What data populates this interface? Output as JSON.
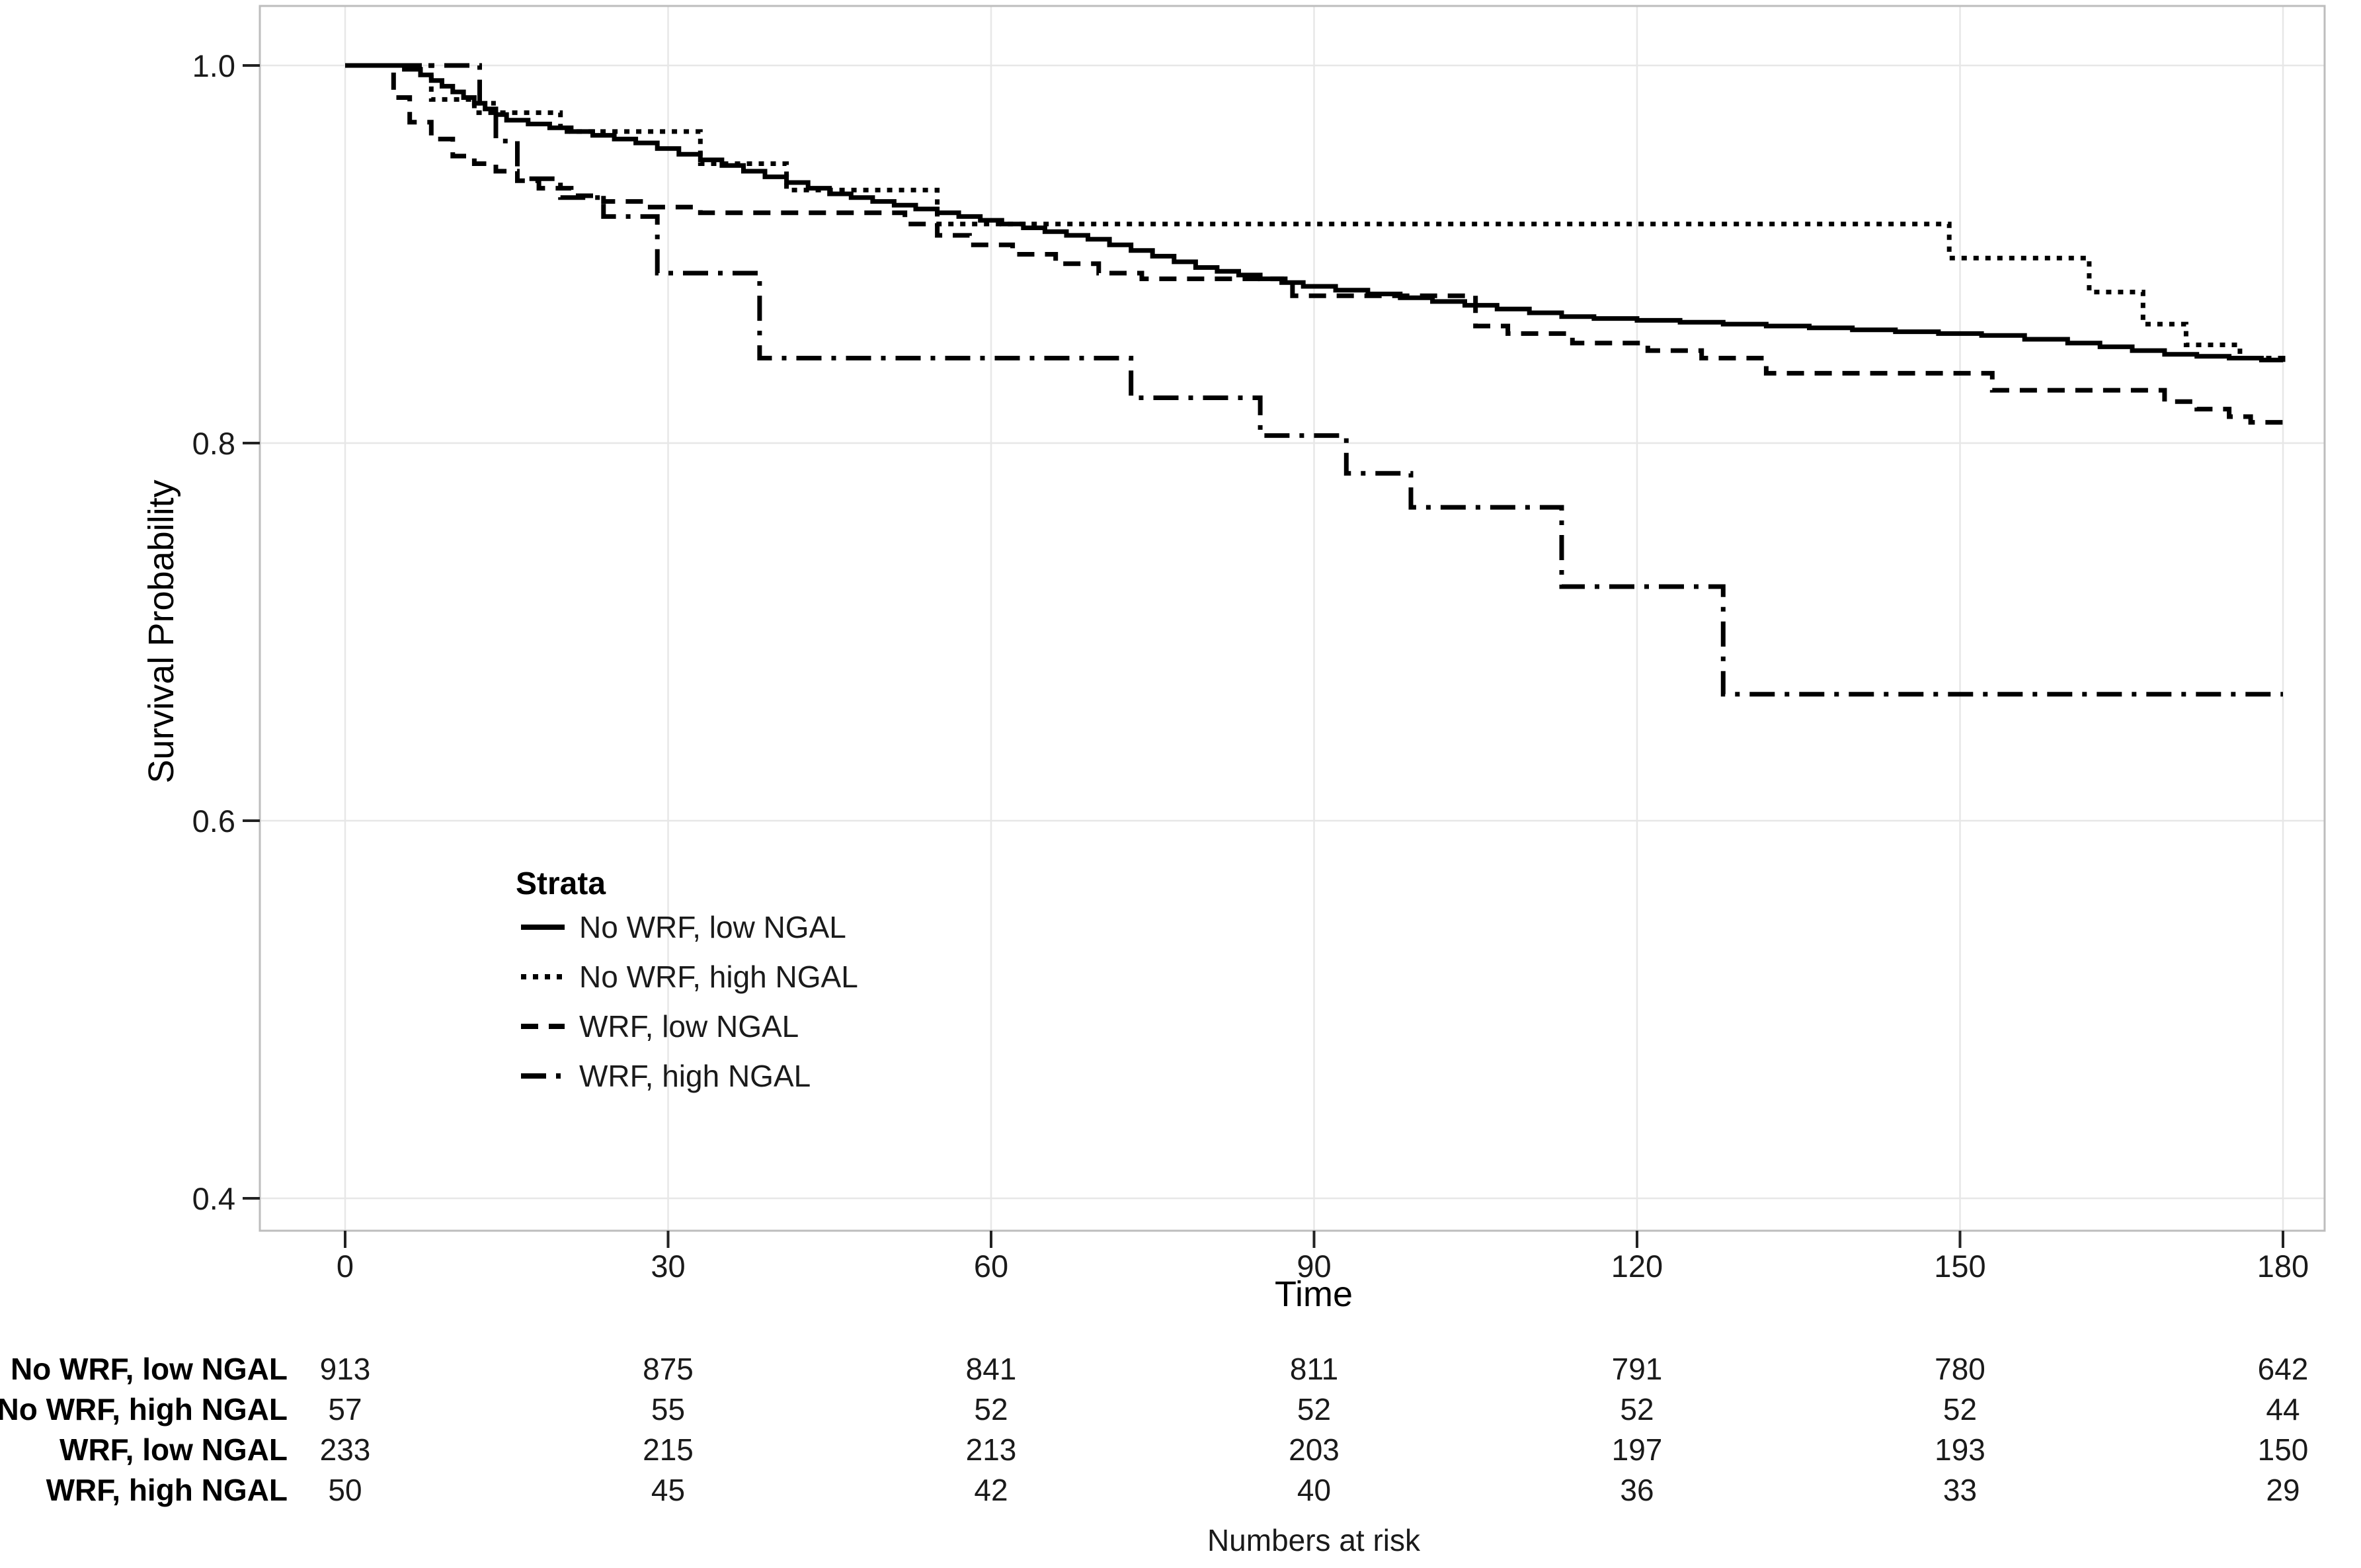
{
  "figure": {
    "legend_title": "Strata",
    "background": "#ffffff"
  },
  "colors": {
    "curve": "#000000",
    "grid": "#e7e7e7",
    "panel_border": "#bdbdbd",
    "tick": "#222222",
    "text": "#1a1a1a"
  },
  "chart_data": {
    "type": "line",
    "subtype": "kaplan-meier-step",
    "title": "",
    "xlabel": "Time",
    "ylabel": "Survival Probability",
    "xlim": [
      0,
      180
    ],
    "ylim": [
      0.35,
      1.02
    ],
    "x_ticks": [
      0,
      30,
      60,
      90,
      120,
      150,
      180
    ],
    "x_tick_labels": [
      "0",
      "30",
      "60",
      "90",
      "120",
      "150",
      "180"
    ],
    "y_ticks": [
      1.0,
      0.8,
      0.6,
      0.4
    ],
    "y_tick_labels": [
      "1.0",
      "0.8",
      "0.6",
      "0.4"
    ],
    "grid": true,
    "legend_position": "inside-left-middle",
    "series": [
      {
        "name": "No WRF, low NGAL",
        "line_style": "solid",
        "points": [
          [
            0,
            1.0
          ],
          [
            5.5,
            0.998
          ],
          [
            7,
            0.995
          ],
          [
            8,
            0.992
          ],
          [
            9,
            0.989
          ],
          [
            10,
            0.986
          ],
          [
            11,
            0.983
          ],
          [
            12,
            0.98
          ],
          [
            13,
            0.977
          ],
          [
            14,
            0.974
          ],
          [
            15,
            0.971
          ],
          [
            17,
            0.969
          ],
          [
            19,
            0.967
          ],
          [
            21,
            0.965
          ],
          [
            23,
            0.963
          ],
          [
            25,
            0.961
          ],
          [
            27,
            0.959
          ],
          [
            29,
            0.956
          ],
          [
            31,
            0.953
          ],
          [
            33,
            0.95
          ],
          [
            35,
            0.947
          ],
          [
            37,
            0.944
          ],
          [
            39,
            0.941
          ],
          [
            41,
            0.938
          ],
          [
            43,
            0.935
          ],
          [
            45,
            0.932
          ],
          [
            47,
            0.93
          ],
          [
            49,
            0.928
          ],
          [
            51,
            0.926
          ],
          [
            53,
            0.924
          ],
          [
            55,
            0.922
          ],
          [
            57,
            0.92
          ],
          [
            59,
            0.918
          ],
          [
            61,
            0.916
          ],
          [
            63,
            0.914
          ],
          [
            65,
            0.912
          ],
          [
            67,
            0.91
          ],
          [
            69,
            0.908
          ],
          [
            71,
            0.905
          ],
          [
            73,
            0.902
          ],
          [
            75,
            0.899
          ],
          [
            77,
            0.896
          ],
          [
            79,
            0.893
          ],
          [
            81,
            0.891
          ],
          [
            83,
            0.889
          ],
          [
            85,
            0.887
          ],
          [
            87,
            0.885
          ],
          [
            89,
            0.883
          ],
          [
            92,
            0.881
          ],
          [
            95,
            0.879
          ],
          [
            98,
            0.877
          ],
          [
            101,
            0.875
          ],
          [
            104,
            0.873
          ],
          [
            107,
            0.871
          ],
          [
            110,
            0.869
          ],
          [
            113,
            0.867
          ],
          [
            116,
            0.866
          ],
          [
            120,
            0.865
          ],
          [
            124,
            0.864
          ],
          [
            128,
            0.863
          ],
          [
            132,
            0.862
          ],
          [
            136,
            0.861
          ],
          [
            140,
            0.86
          ],
          [
            144,
            0.859
          ],
          [
            148,
            0.858
          ],
          [
            152,
            0.857
          ],
          [
            156,
            0.855
          ],
          [
            160,
            0.853
          ],
          [
            163,
            0.851
          ],
          [
            166,
            0.849
          ],
          [
            169,
            0.847
          ],
          [
            172,
            0.846
          ],
          [
            175,
            0.845
          ],
          [
            178,
            0.844
          ],
          [
            180,
            0.843
          ]
        ]
      },
      {
        "name": "No WRF, high NGAL",
        "line_style": "dotted",
        "points": [
          [
            0,
            1.0
          ],
          [
            8,
            0.982
          ],
          [
            12,
            0.975
          ],
          [
            20,
            0.965
          ],
          [
            33,
            0.948
          ],
          [
            41,
            0.934
          ],
          [
            55,
            0.916
          ],
          [
            149,
            0.898
          ],
          [
            162,
            0.88
          ],
          [
            167,
            0.863
          ],
          [
            171,
            0.852
          ],
          [
            176,
            0.845
          ],
          [
            180,
            0.842
          ]
        ]
      },
      {
        "name": "WRF, low NGAL",
        "line_style": "dashed",
        "points": [
          [
            0,
            1.0
          ],
          [
            4.5,
            0.983
          ],
          [
            6,
            0.97
          ],
          [
            8,
            0.961
          ],
          [
            10,
            0.952
          ],
          [
            12,
            0.948
          ],
          [
            14,
            0.944
          ],
          [
            16,
            0.939
          ],
          [
            18,
            0.935
          ],
          [
            21,
            0.931
          ],
          [
            24,
            0.928
          ],
          [
            28,
            0.925
          ],
          [
            33,
            0.922
          ],
          [
            52,
            0.916
          ],
          [
            55,
            0.91
          ],
          [
            58,
            0.905
          ],
          [
            62,
            0.9
          ],
          [
            66,
            0.895
          ],
          [
            70,
            0.89
          ],
          [
            74,
            0.887
          ],
          [
            88,
            0.878
          ],
          [
            105,
            0.862
          ],
          [
            108,
            0.858
          ],
          [
            114,
            0.853
          ],
          [
            121,
            0.849
          ],
          [
            126,
            0.845
          ],
          [
            132,
            0.837
          ],
          [
            153,
            0.828
          ],
          [
            169,
            0.822
          ],
          [
            172,
            0.818
          ],
          [
            175,
            0.814
          ],
          [
            177,
            0.811
          ],
          [
            180,
            0.81
          ]
        ]
      },
      {
        "name": "WRF, high NGAL",
        "line_style": "longdash-dot",
        "points": [
          [
            0,
            1.0
          ],
          [
            12.5,
            0.98
          ],
          [
            14,
            0.96
          ],
          [
            16,
            0.94
          ],
          [
            20,
            0.93
          ],
          [
            24,
            0.92
          ],
          [
            29,
            0.89
          ],
          [
            38.5,
            0.845
          ],
          [
            73,
            0.824
          ],
          [
            85,
            0.804
          ],
          [
            93,
            0.784
          ],
          [
            99,
            0.766
          ],
          [
            113,
            0.724
          ],
          [
            128,
            0.667
          ],
          [
            180,
            0.667
          ]
        ]
      }
    ]
  },
  "risk_table": {
    "caption": "Numbers at risk",
    "time_points": [
      0,
      30,
      60,
      90,
      120,
      150,
      180
    ],
    "rows": [
      {
        "label": "No WRF, low NGAL",
        "values": [
          913,
          875,
          841,
          811,
          791,
          780,
          642
        ]
      },
      {
        "label": "No WRF, high NGAL",
        "values": [
          57,
          55,
          52,
          52,
          52,
          52,
          44
        ]
      },
      {
        "label": "WRF, low NGAL",
        "values": [
          233,
          215,
          213,
          203,
          197,
          193,
          150
        ]
      },
      {
        "label": "WRF, high NGAL",
        "values": [
          50,
          45,
          42,
          40,
          36,
          33,
          29
        ]
      }
    ]
  }
}
